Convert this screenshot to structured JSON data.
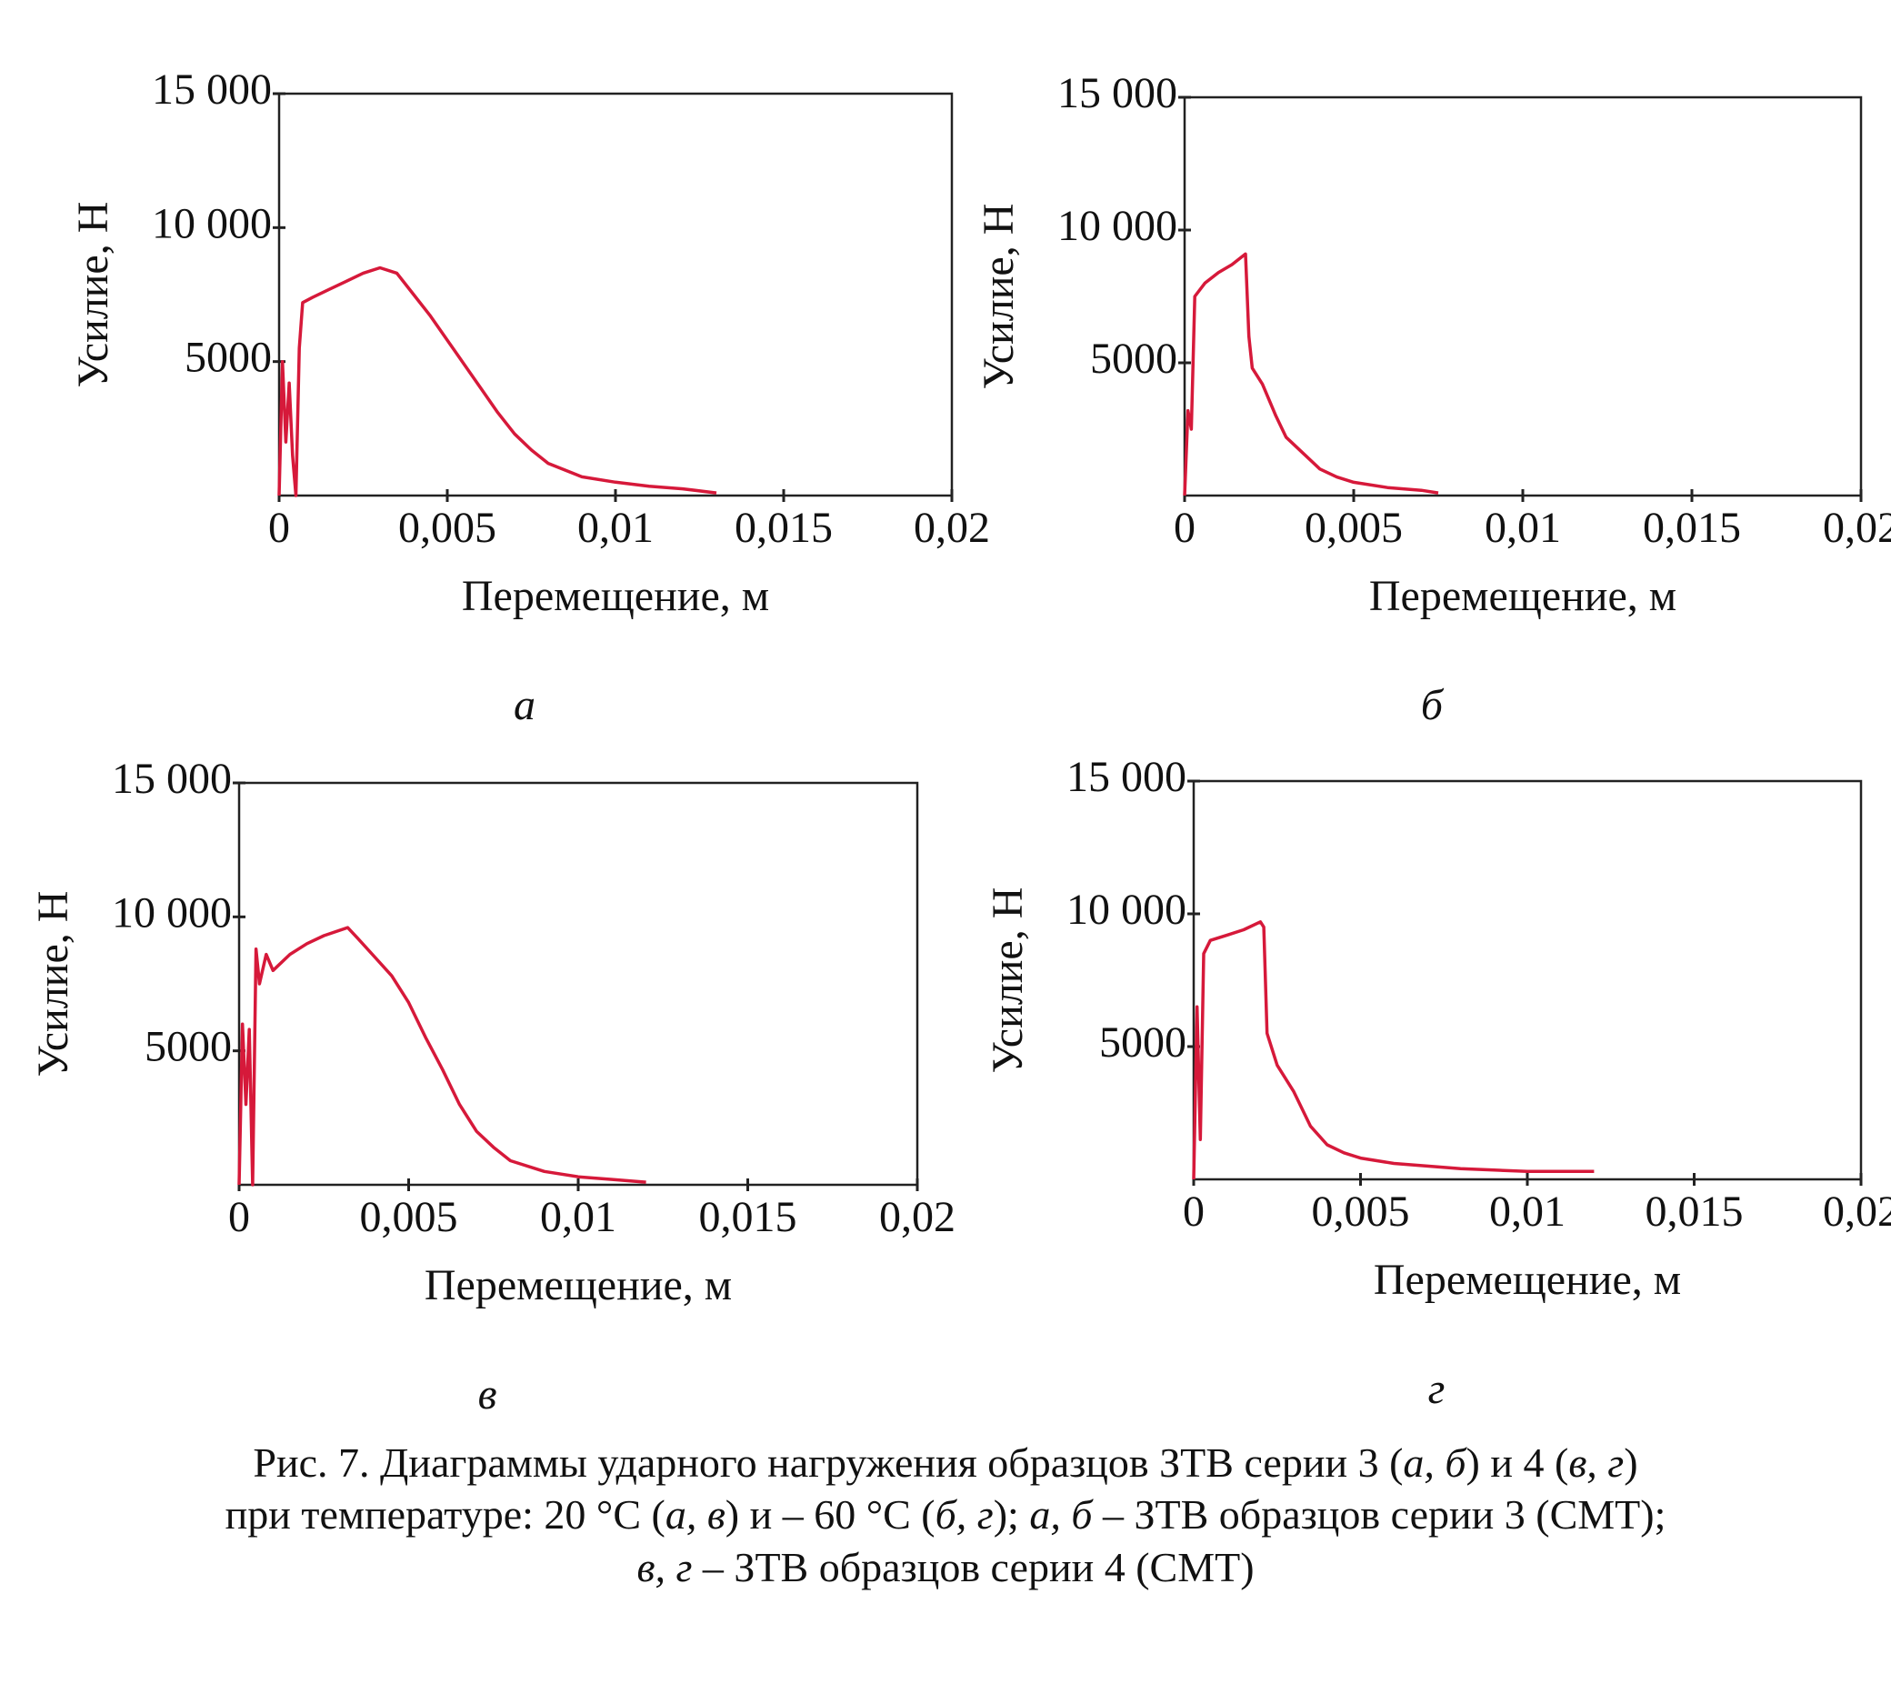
{
  "chart_data": [
    {
      "type": "line",
      "panel": "а",
      "xlabel": "Перемещение, м",
      "ylabel": "Усилие, Н",
      "xlim": [
        0,
        0.02
      ],
      "ylim": [
        0,
        15000
      ],
      "xticks": [
        0,
        {
          "value": 0.005,
          "label": "0,005"
        },
        {
          "value": 0.01,
          "label": "0,01"
        },
        {
          "value": 0.015,
          "label": "0,015"
        },
        {
          "value": 0.02,
          "label": "0,02"
        }
      ],
      "yticks": [
        5000,
        {
          "value": 10000,
          "label": "10 000"
        },
        {
          "value": 15000,
          "label": "15 000"
        }
      ],
      "color": "#d6193a",
      "x": [
        0,
        0.0001,
        0.0002,
        0.0003,
        0.0004,
        0.0005,
        0.0006,
        0.0007,
        0.001,
        0.0015,
        0.002,
        0.0025,
        0.003,
        0.0035,
        0.004,
        0.0045,
        0.005,
        0.0055,
        0.006,
        0.0065,
        0.007,
        0.0075,
        0.008,
        0.009,
        0.01,
        0.011,
        0.012,
        0.013
      ],
      "values": [
        0,
        5000,
        2000,
        4200,
        1500,
        0,
        5500,
        7200,
        7400,
        7700,
        8000,
        8300,
        8500,
        8300,
        7500,
        6700,
        5800,
        4900,
        4000,
        3100,
        2300,
        1700,
        1200,
        700,
        500,
        350,
        250,
        100
      ]
    },
    {
      "type": "line",
      "panel": "б",
      "xlabel": "Перемещение, м",
      "ylabel": "Усилие, Н",
      "xlim": [
        0,
        0.02
      ],
      "ylim": [
        0,
        15000
      ],
      "xticks": [
        0,
        {
          "value": 0.005,
          "label": "0,005"
        },
        {
          "value": 0.01,
          "label": "0,01"
        },
        {
          "value": 0.015,
          "label": "0,015"
        },
        {
          "value": 0.02,
          "label": "0,02"
        }
      ],
      "yticks": [
        5000,
        {
          "value": 10000,
          "label": "10 000"
        },
        {
          "value": 15000,
          "label": "15 000"
        }
      ],
      "color": "#d6193a",
      "x": [
        0,
        0.0001,
        0.0002,
        0.0003,
        0.0006,
        0.001,
        0.0014,
        0.0018,
        0.0019,
        0.002,
        0.0023,
        0.0027,
        0.003,
        0.0035,
        0.004,
        0.0045,
        0.005,
        0.006,
        0.007,
        0.0075
      ],
      "values": [
        0,
        3200,
        2500,
        7500,
        8000,
        8400,
        8700,
        9100,
        6000,
        4800,
        4200,
        3000,
        2200,
        1600,
        1000,
        700,
        500,
        300,
        200,
        100
      ]
    },
    {
      "type": "line",
      "panel": "в",
      "xlabel": "Перемещение, м",
      "ylabel": "Усилие, Н",
      "xlim": [
        0,
        0.02
      ],
      "ylim": [
        0,
        15000
      ],
      "xticks": [
        0,
        {
          "value": 0.005,
          "label": "0,005"
        },
        {
          "value": 0.01,
          "label": "0,01"
        },
        {
          "value": 0.015,
          "label": "0,015"
        },
        {
          "value": 0.02,
          "label": "0,02"
        }
      ],
      "yticks": [
        5000,
        {
          "value": 10000,
          "label": "10 000"
        },
        {
          "value": 15000,
          "label": "15 000"
        }
      ],
      "color": "#d6193a",
      "x": [
        0,
        0.0001,
        0.0002,
        0.0003,
        0.0004,
        0.0005,
        0.0006,
        0.0008,
        0.001,
        0.0015,
        0.002,
        0.0025,
        0.0032,
        0.0035,
        0.004,
        0.0045,
        0.005,
        0.0055,
        0.006,
        0.0065,
        0.007,
        0.0075,
        0.008,
        0.009,
        0.01,
        0.011,
        0.012
      ],
      "values": [
        0,
        6000,
        3000,
        5800,
        0,
        8800,
        7500,
        8600,
        8000,
        8600,
        9000,
        9300,
        9600,
        9200,
        8500,
        7800,
        6800,
        5500,
        4300,
        3000,
        2000,
        1400,
        900,
        500,
        300,
        200,
        100
      ]
    },
    {
      "type": "line",
      "panel": "г",
      "xlabel": "Перемещение, м",
      "ylabel": "Усилие, Н",
      "xlim": [
        0,
        0.02
      ],
      "ylim": [
        0,
        15000
      ],
      "xticks": [
        0,
        {
          "value": 0.005,
          "label": "0,005"
        },
        {
          "value": 0.01,
          "label": "0,01"
        },
        {
          "value": 0.015,
          "label": "0,015"
        },
        {
          "value": 0.02,
          "label": "0,02"
        }
      ],
      "yticks": [
        5000,
        {
          "value": 10000,
          "label": "10 000"
        },
        {
          "value": 15000,
          "label": "15 000"
        }
      ],
      "color": "#d6193a",
      "x": [
        0,
        0.0001,
        0.0002,
        0.0003,
        0.0005,
        0.001,
        0.0015,
        0.002,
        0.0021,
        0.0022,
        0.0025,
        0.003,
        0.0035,
        0.004,
        0.0045,
        0.005,
        0.006,
        0.007,
        0.008,
        0.009,
        0.01,
        0.011,
        0.012
      ],
      "values": [
        0,
        6500,
        1500,
        8500,
        9000,
        9200,
        9400,
        9700,
        9500,
        5500,
        4300,
        3300,
        2000,
        1300,
        1000,
        800,
        600,
        500,
        400,
        350,
        300,
        300,
        300
      ]
    }
  ],
  "caption": [
    [
      "Рис. 7. Диаграммы ударного нагружения образцов ЗТВ серии 3 (",
      "а, б",
      ") и 4 (",
      "в, г",
      ")"
    ],
    [
      "при температуре: 20 °С (",
      "а, в",
      ") и – 60 °С (",
      "б, г",
      "); ",
      "а, б",
      " – ЗТВ образцов серии 3 (СМТ);"
    ],
    [
      "",
      "в, г",
      " – ЗТВ образцов серии 4 (СМТ)"
    ]
  ]
}
